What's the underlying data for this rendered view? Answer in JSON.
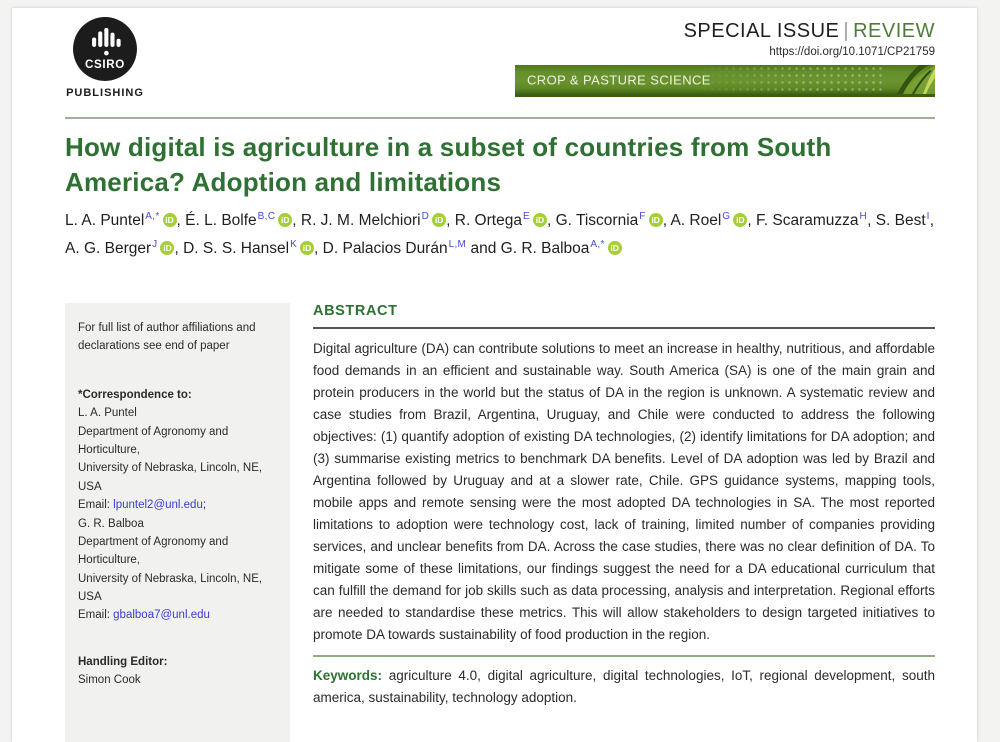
{
  "masthead": {
    "publisher": "CSIRO",
    "publisher_sub": "PUBLISHING",
    "issue_prefix": "SPECIAL ISSUE",
    "issue_separator": "|",
    "issue_type": "REVIEW",
    "doi": "https://doi.org/10.1071/CP21759",
    "journal_banner": "CROP & PASTURE SCIENCE"
  },
  "title": "How digital is agriculture in a subset of countries from South America? Adoption and limitations",
  "authors": {
    "and_label": "and",
    "list": [
      {
        "name": "L. A. Puntel",
        "sup": "A,*",
        "orcid": true
      },
      {
        "name": "É. L. Bolfe",
        "sup": "B,C",
        "orcid": true
      },
      {
        "name": "R. J. M. Melchiori",
        "sup": "D",
        "orcid": true
      },
      {
        "name": "R. Ortega",
        "sup": "E",
        "orcid": true
      },
      {
        "name": "G. Tiscornia",
        "sup": "F",
        "orcid": true
      },
      {
        "name": "A. Roel",
        "sup": "G",
        "orcid": true
      },
      {
        "name": "F. Scaramuzza",
        "sup": "H",
        "orcid": false
      },
      {
        "name": "S. Best",
        "sup": "I",
        "orcid": false
      },
      {
        "name": "A. G. Berger",
        "sup": "J",
        "orcid": true
      },
      {
        "name": "D. S. S. Hansel",
        "sup": "K",
        "orcid": true
      },
      {
        "name": "D. Palacios Durán",
        "sup": "L,M",
        "orcid": false
      },
      {
        "name": "G. R. Balboa",
        "sup": "A,*",
        "orcid": true
      }
    ]
  },
  "sidebar": {
    "affiliation_note": "For full list of author affiliations and declarations see end of paper",
    "correspondence_label": "*Correspondence to:",
    "correspondents": [
      {
        "name": "L. A. Puntel",
        "dept": "Department of Agronomy and Horticulture,",
        "univ": "University of Nebraska, Lincoln, NE, USA",
        "email_label": "Email: ",
        "email": "lpuntel2@unl.edu",
        "suffix": ";"
      },
      {
        "name": "G. R. Balboa",
        "dept": "Department of Agronomy and Horticulture,",
        "univ": "University of Nebraska, Lincoln, NE, USA",
        "email_label": "Email: ",
        "email": "gbalboa7@unl.edu",
        "suffix": ""
      }
    ],
    "handling_editor_label": "Handling Editor:",
    "handling_editor": "Simon Cook"
  },
  "abstract": {
    "heading": "ABSTRACT",
    "text": "Digital agriculture (DA) can contribute solutions to meet an increase in healthy, nutritious, and affordable food demands in an efficient and sustainable way. South America (SA) is one of the main grain and protein producers in the world but the status of DA in the region is unknown. A systematic review and case studies from Brazil, Argentina, Uruguay, and Chile were conducted to address the following objectives: (1) quantify adoption of existing DA technologies, (2) identify limitations for DA adoption; and (3) summarise existing metrics to benchmark DA benefits. Level of DA adoption was led by Brazil and Argentina followed by Uruguay and at a slower rate, Chile. GPS guidance systems, mapping tools, mobile apps and remote sensing were the most adopted DA technologies in SA. The most reported limitations to adoption were technology cost, lack of training, limited number of companies providing services, and unclear benefits from DA. Across the case studies, there was no clear definition of DA. To mitigate some of these limitations, our findings suggest the need for a DA educational curriculum that can fulfill the demand for job skills such as data processing, analysis and interpretation. Regional efforts are needed to standardise these metrics. This will allow stakeholders to design targeted initiatives to promote DA towards sustainability of food production in the region."
  },
  "keywords": {
    "label": "Keywords:",
    "text": "agriculture 4.0, digital agriculture, digital technologies, IoT, regional development, south america, sustainability, technology adoption."
  },
  "colors": {
    "title_green": "#2e7133",
    "banner_green": "#6b9430",
    "review_green": "#4c7c38",
    "orcid_green": "#a6ce39",
    "link_blue": "#3b3bd1",
    "superscript_blue": "#4a4ad2",
    "sidebar_gray": "#f1f1ef"
  }
}
